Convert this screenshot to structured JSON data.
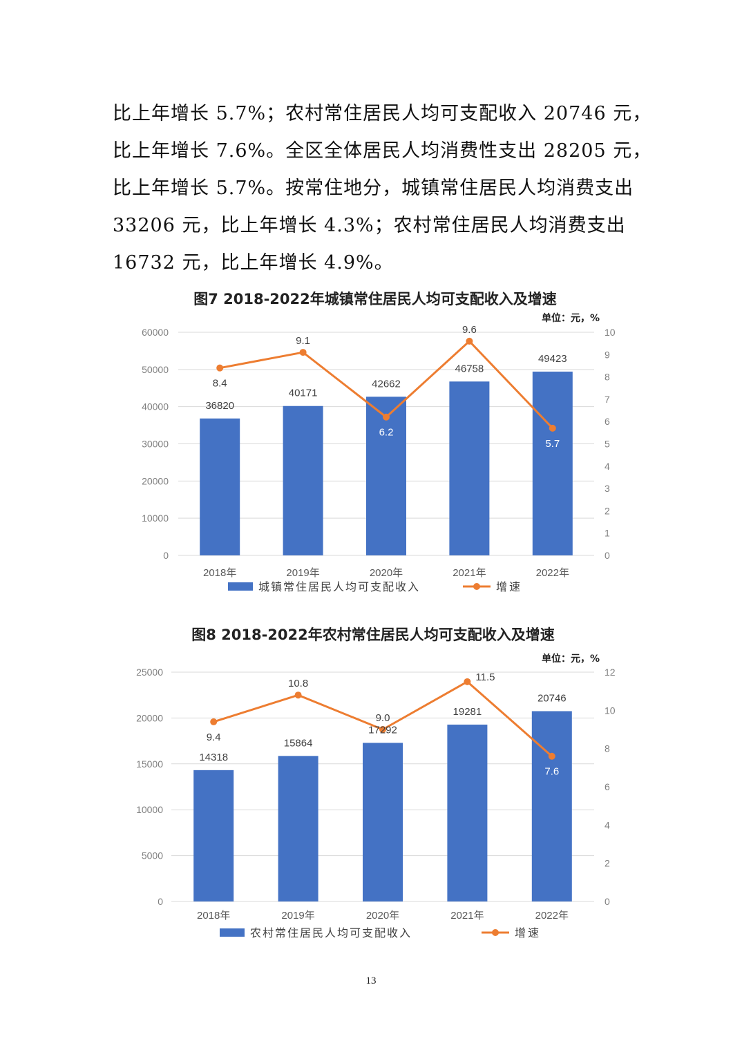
{
  "paragraph": {
    "lines": [
      "比上年增长 5.7%；农村常住居民人均可支配收入 20746 元，",
      "比上年增长 7.6%。全区全体居民人均消费性支出 28205 元，",
      "比上年增长 5.7%。按常住地分，城镇常住居民人均消费支出",
      "33206 元，比上年增长 4.3%；农村常住居民人均消费支出",
      "16732 元，比上年增长 4.9%。"
    ]
  },
  "page_number": "13",
  "chart_data": [
    {
      "type": "bar",
      "title": "图7  2018-2022年城镇常住居民人均可支配收入及增速",
      "unit": "单位：元，%",
      "categories": [
        "2018年",
        "2019年",
        "2020年",
        "2021年",
        "2022年"
      ],
      "series": [
        {
          "name": "城镇常住居民人均可支配收入",
          "type": "bar",
          "axis": "left",
          "color": "#4472C4",
          "values": [
            36820,
            40171,
            42662,
            46758,
            49423
          ]
        },
        {
          "name": "增速",
          "type": "line",
          "axis": "right",
          "color": "#ED7D31",
          "values": [
            8.4,
            9.1,
            6.2,
            9.6,
            5.7
          ]
        }
      ],
      "ylim": [
        0,
        60000
      ],
      "yticks": [
        0,
        10000,
        20000,
        30000,
        40000,
        50000,
        60000
      ],
      "y2lim": [
        0,
        10
      ],
      "y2ticks": [
        0,
        1,
        2,
        3,
        4,
        5,
        6,
        7,
        8,
        9,
        10
      ],
      "line_label_placement": [
        "below",
        "above",
        "below",
        "above",
        "below"
      ],
      "grid": true,
      "legend": "bottom"
    },
    {
      "type": "bar",
      "title": "图8 2018-2022年农村常住居民人均可支配收入及增速",
      "unit": "单位：元，%",
      "categories": [
        "2018年",
        "2019年",
        "2020年",
        "2021年",
        "2022年"
      ],
      "series": [
        {
          "name": "农村常住居民人均可支配收入",
          "type": "bar",
          "axis": "left",
          "color": "#4472C4",
          "values": [
            14318,
            15864,
            17292,
            19281,
            20746
          ]
        },
        {
          "name": "增速",
          "type": "line",
          "axis": "right",
          "color": "#ED7D31",
          "values": [
            9.4,
            10.8,
            9.0,
            11.5,
            7.6
          ]
        }
      ],
      "ylim": [
        0,
        25000
      ],
      "yticks": [
        0,
        5000,
        10000,
        15000,
        20000,
        25000
      ],
      "y2lim": [
        0,
        12
      ],
      "y2ticks": [
        0,
        2,
        4,
        6,
        8,
        10,
        12
      ],
      "line_label_placement": [
        "below",
        "above",
        "above",
        "above-right",
        "below"
      ],
      "grid": true,
      "legend": "bottom"
    }
  ]
}
